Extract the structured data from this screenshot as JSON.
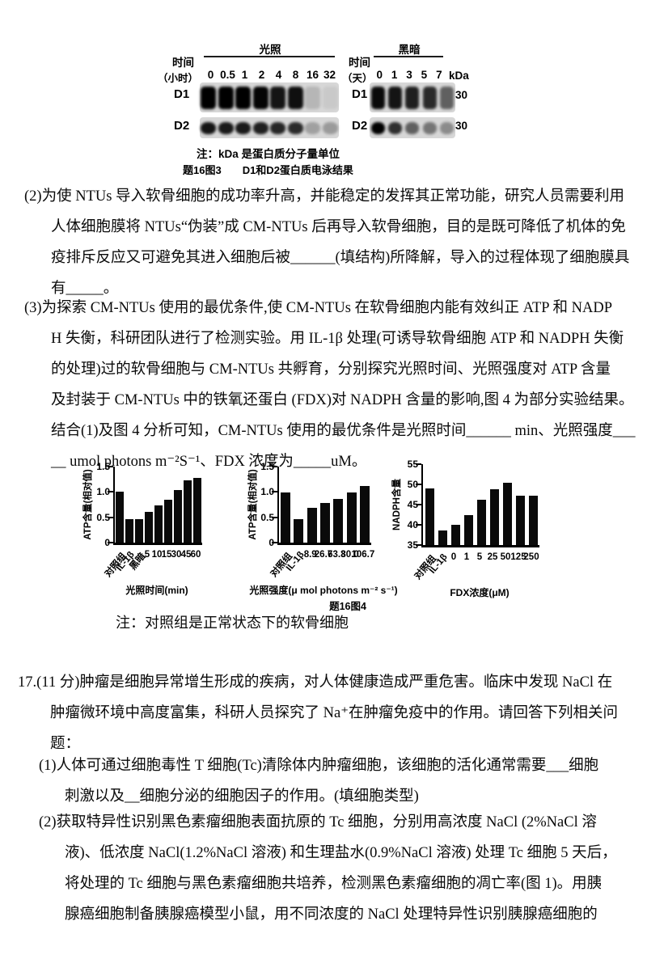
{
  "page": {
    "background": "#ffffff",
    "text_color": "#0a0a0a"
  },
  "figure3": {
    "left_panel": {
      "condition_label": "光照",
      "time_label": "时间",
      "time_unit_label": "（小时）",
      "lanes": [
        "0",
        "0.5",
        "1",
        "2",
        "4",
        "8",
        "16",
        "32"
      ],
      "rows": [
        {
          "name": "D1",
          "band_intensities": [
            1,
            1,
            1,
            0.98,
            0.9,
            0.93,
            0.15,
            0.06
          ]
        },
        {
          "name": "D2",
          "band_intensities": [
            0.9,
            0.88,
            0.88,
            0.85,
            0.82,
            0.8,
            0.25,
            0.28
          ]
        }
      ]
    },
    "right_panel": {
      "condition_label": "黑暗",
      "time_label": "时间",
      "time_unit_label": "（天）",
      "kda_header": "kDa",
      "lanes": [
        "0",
        "1",
        "3",
        "5",
        "7"
      ],
      "rows": [
        {
          "name": "D1",
          "kda": "30",
          "band_intensities": [
            0.95,
            0.9,
            0.85,
            0.8,
            0.55
          ]
        },
        {
          "name": "D2",
          "kda": "30",
          "band_intensities": [
            1,
            0.78,
            0.55,
            0.45,
            0.35
          ]
        }
      ]
    },
    "note": "注：kDa 是蛋白质分子量单位",
    "caption": "题16图3　　D1和D2蛋白质电泳结果"
  },
  "q16_part2_lines": [
    "(2)为使 NTUs 导入软骨细胞的成功率升高，并能稳定的发挥其正常功能，研究人员需要利用",
    "人体细胞膜将 NTUs“伪装”成 CM-NTUs 后再导入软骨细胞，目的是既可降低了机体的免",
    "疫排斥反应又可避免其进入细胞后被______(填结构)所降解，导入的过程体现了细胞膜具",
    "有_____。"
  ],
  "q16_part3_lines": [
    "(3)为探索 CM-NTUs 使用的最优条件,使 CM-NTUs 在软骨细胞内能有效纠正 ATP 和 NADP",
    "H 失衡，科研团队进行了检测实验。用 IL-1β 处理(可诱导软骨细胞 ATP 和 NADPH 失衡",
    "的处理)过的软骨细胞与 CM-NTUs 共孵育，分别探究光照时间、光照强度对 ATP 含量",
    "及封装于 CM-NTUs 中的铁氧还蛋白 (FDX)对 NADPH 含量的影响,图 4 为部分实验结果。",
    "结合(1)及图 4 分析可知，CM-NTUs 使用的最优条件是光照时间______ min、光照强度___",
    "__ umol photons m⁻²S⁻¹、FDX 浓度为_____uM。"
  ],
  "chart_data": [
    {
      "type": "bar",
      "ylabel": "ATP含量(相对值)",
      "xlabel": "光照时间(min)",
      "ymin": 0,
      "ymax": 1.5,
      "yticks": [
        "1.5",
        "1.0",
        "0.5",
        "0"
      ],
      "categories": [
        "对照组",
        "IL-1β",
        "黑暗",
        "5",
        "10",
        "15",
        "30",
        "45",
        "60"
      ],
      "values": [
        1.0,
        0.46,
        0.46,
        0.6,
        0.73,
        0.84,
        1.03,
        1.23,
        1.28
      ],
      "grid": false,
      "legend": "none"
    },
    {
      "type": "bar",
      "ylabel": "ATP含量(相对值)",
      "xlabel": "光照强度(μ mol photons m⁻² s⁻¹)",
      "ymin": 0,
      "ymax": 1.5,
      "yticks": [
        "1.5",
        "1.0",
        "0.5",
        "0"
      ],
      "categories": [
        "对照组",
        "IL-1β",
        "8.9",
        "26.7",
        "63.3",
        "80.0",
        "106.7"
      ],
      "values": [
        0.99,
        0.47,
        0.69,
        0.78,
        0.86,
        0.99,
        1.12
      ],
      "grid": false,
      "legend": "none"
    },
    {
      "type": "bar",
      "ylabel": "NADPH含量",
      "xlabel": "FDX浓度(μM)",
      "ymin": 35,
      "ymax": 55,
      "yticks": [
        "55",
        "50",
        "45",
        "40",
        "35"
      ],
      "categories": [
        "对照组",
        "IL-1β",
        "0",
        "1",
        "5",
        "25",
        "50",
        "125",
        "250"
      ],
      "values": [
        49,
        38.7,
        40,
        42.5,
        46.2,
        48.8,
        50.5,
        47.3,
        47.2
      ],
      "grid": false,
      "legend": "none"
    }
  ],
  "figure4": {
    "caption": "题16图4",
    "note": "注：对照组是正常状态下的软骨细胞"
  },
  "q17_intro_lines": [
    "17.(11 分)肿瘤是细胞异常增生形成的疾病，对人体健康造成严重危害。临床中发现 NaCl 在",
    "肿瘤微环境中高度富集，科研人员探究了 Na⁺在肿瘤免疫中的作用。请回答下列相关问",
    "题："
  ],
  "q17_part1_lines": [
    "(1)人体可通过细胞毒性 T 细胞(Tc)清除体内肿瘤细胞，该细胞的活化通常需要___细胞",
    "刺激以及__细胞分泌的细胞因子的作用。(填细胞类型)"
  ],
  "q17_part2_lines": [
    "(2)获取特异性识别黑色素瘤细胞表面抗原的 Tc 细胞，分别用高浓度 NaCl (2%NaCl 溶",
    "液)、低浓度 NaCl(1.2%NaCl 溶液) 和生理盐水(0.9%NaCl 溶液) 处理 Tc 细胞 5 天后，",
    "将处理的 Tc 细胞与黑色素瘤细胞共培养，检测黑色素瘤细胞的凋亡率(图 1)。用胰",
    "腺癌细胞制备胰腺癌模型小鼠，用不同浓度的 NaCl 处理特异性识别胰腺癌细胞的"
  ]
}
